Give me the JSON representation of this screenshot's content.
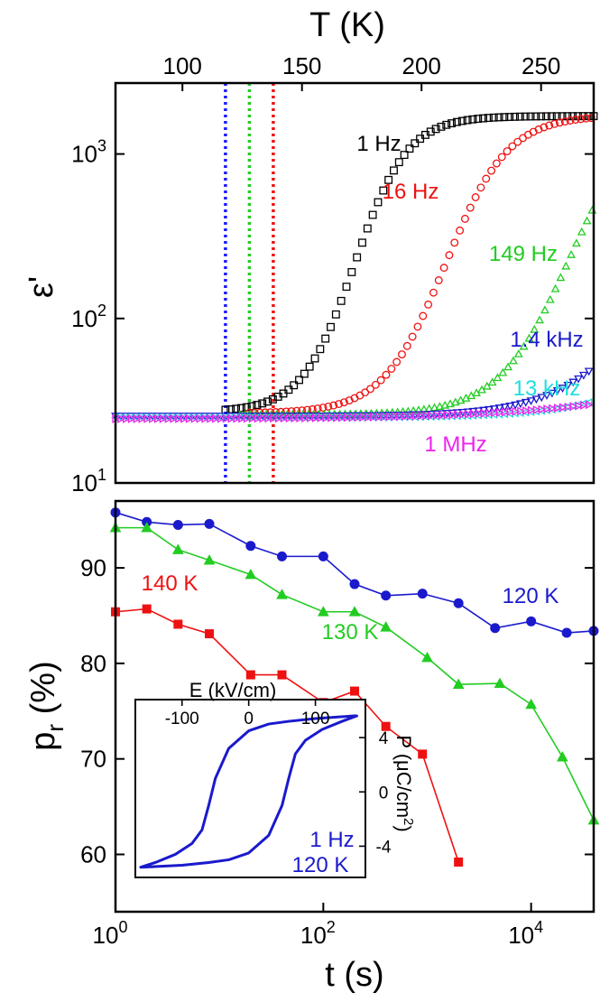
{
  "chart_data": [
    {
      "type": "scatter",
      "panel": "top",
      "xlabel": "T (K)",
      "ylabel": "ε'",
      "xscale": "linear",
      "yscale": "log",
      "xlim": [
        72,
        272
      ],
      "ylim": [
        10,
        2700
      ],
      "x_ticks": [
        "100",
        "150",
        "200",
        "250"
      ],
      "y_ticks": [
        "10",
        "10",
        "10"
      ],
      "y_tick_exponents": [
        "1",
        "2",
        "3"
      ],
      "grid": false,
      "vlines": [
        {
          "x": 118,
          "color": "#1a1aff"
        },
        {
          "x": 128,
          "color": "#22cc22"
        },
        {
          "x": 138,
          "color": "#ee1111"
        }
      ],
      "series": [
        {
          "name": "1 Hz",
          "color": "#000000",
          "marker": "square",
          "x0": 118,
          "x1": 272,
          "base": 27,
          "top": 1700,
          "center": 172,
          "width": 11
        },
        {
          "name": "16 Hz",
          "color": "#ee1111",
          "marker": "circle",
          "x0": 128,
          "x1": 272,
          "base": 26.5,
          "top": 1720,
          "center": 210,
          "width": 13
        },
        {
          "name": "149 Hz",
          "color": "#22cc22",
          "marker": "triangle-up",
          "x0": 124,
          "x1": 272,
          "base": 26,
          "top": 2100,
          "center": 262,
          "width": 15
        },
        {
          "name": "1.4 kHz",
          "color": "#1a1acc",
          "marker": "triangle-down",
          "x0": 72,
          "x1": 272,
          "base": 25.5,
          "top": 800,
          "center": 300,
          "width": 20
        },
        {
          "name": "13 kHz",
          "color": "#22dddd",
          "marker": "triangle-left",
          "x0": 72,
          "x1": 272,
          "base": 25,
          "top": 400,
          "center": 330,
          "width": 24
        },
        {
          "name": "1 MHz",
          "color": "#ee22ee",
          "marker": "triangle-right",
          "x0": 72,
          "x1": 272,
          "base": 24.5,
          "top": 60,
          "center": 320,
          "width": 40
        }
      ]
    },
    {
      "type": "line",
      "panel": "bottom",
      "xlabel": "t (s)",
      "ylabel": "p",
      "ylabel_sub": "r",
      "ylabel_unit": " (%)",
      "xscale": "log",
      "yscale": "linear",
      "xlim": [
        1,
        40000
      ],
      "ylim": [
        54,
        97
      ],
      "x_ticks": [
        "10",
        "10",
        "10"
      ],
      "x_tick_exponents": [
        "0",
        "2",
        "4"
      ],
      "y_ticks": [
        "60",
        "70",
        "80",
        "90"
      ],
      "grid": false,
      "series": [
        {
          "name": "120 K",
          "color": "#1a1acc",
          "marker": "circle",
          "x": [
            1,
            2,
            4,
            8,
            20,
            40,
            100,
            200,
            400,
            900,
            2000,
            4500,
            10000,
            22000,
            40000
          ],
          "y": [
            95.8,
            94.8,
            94.5,
            94.6,
            92.3,
            91.2,
            91.2,
            88.3,
            87.1,
            87.3,
            86.3,
            83.7,
            84.4,
            83.2,
            83.4
          ]
        },
        {
          "name": "130 K",
          "color": "#22cc22",
          "marker": "triangle",
          "x": [
            1,
            2,
            4,
            8,
            20,
            40,
            100,
            200,
            400,
            1000,
            2000,
            5000,
            10000,
            20000,
            40000
          ],
          "y": [
            94.2,
            94.2,
            91.9,
            90.8,
            89.3,
            87.2,
            85.4,
            85.4,
            83.8,
            80.6,
            77.8,
            77.9,
            75.7,
            70.2,
            63.6
          ]
        },
        {
          "name": "140 K",
          "color": "#ee1111",
          "marker": "square",
          "x": [
            1,
            2,
            4,
            8,
            20,
            40,
            100,
            200,
            400,
            900,
            2000
          ],
          "y": [
            85.4,
            85.7,
            84.1,
            83.1,
            78.8,
            78.8,
            75.9,
            77.1,
            73.4,
            70.5,
            59.2
          ]
        }
      ],
      "inset": {
        "type": "line",
        "series_name": "1 Hz",
        "label_lines": [
          "1 Hz",
          "120 K"
        ],
        "xlabel": "E (kV/cm)",
        "ylabel": "P (μC/cm",
        "ylabel_sup": "2",
        "ylabel_end": ")",
        "xlim": [
          -170,
          175
        ],
        "ylim": [
          -6.3,
          6.8
        ],
        "x_ticks": [
          "-100",
          "0",
          "100"
        ],
        "y_ticks": [
          "4",
          "0",
          "-4"
        ],
        "color": "#1a1acc",
        "loop_upper": {
          "E": [
            158,
            100,
            60,
            30,
            0,
            -30,
            -50,
            -60,
            -70,
            -85,
            -110,
            -140,
            -162
          ],
          "P": [
            5.6,
            5.4,
            5.2,
            5.0,
            4.5,
            3.2,
            1.0,
            -1.0,
            -2.8,
            -3.8,
            -4.6,
            -5.2,
            -5.55
          ]
        },
        "loop_lower": {
          "E": [
            -162,
            -100,
            -60,
            -30,
            0,
            30,
            50,
            60,
            70,
            85,
            110,
            140,
            162
          ],
          "P": [
            -5.55,
            -5.4,
            -5.2,
            -5.0,
            -4.5,
            -3.2,
            -1.0,
            1.0,
            2.8,
            3.8,
            4.6,
            5.2,
            5.6
          ]
        }
      }
    }
  ]
}
